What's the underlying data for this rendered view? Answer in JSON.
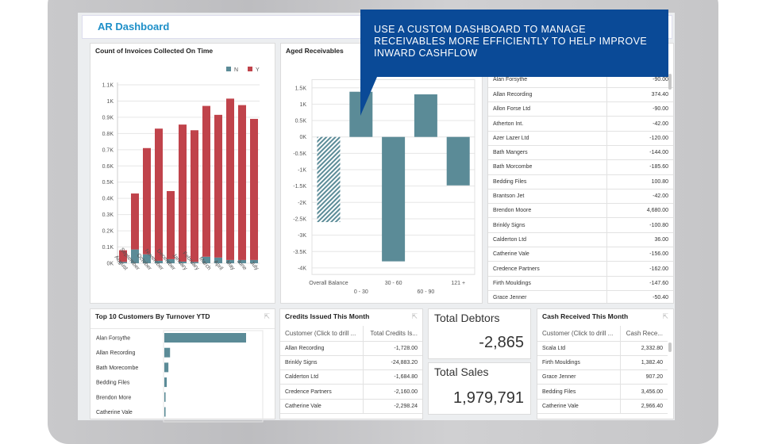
{
  "callout": {
    "lines": [
      "USE A CUSTOM DASHBOARD TO MANAGE",
      "RECEIVABLES MORE EFFICIENTLY TO HELP IMPROVE",
      "INWARD CASHFLOW"
    ],
    "color": "#0a4a97"
  },
  "dashboard": {
    "title": "AR Dashboard"
  },
  "colors": {
    "N": "#5b8b97",
    "Y": "#c0434b",
    "bar": "#5b8b97"
  },
  "chart_data": [
    {
      "type": "bar",
      "stacked": true,
      "title": "Count of Invoices Collected On Time",
      "legend": "top-right",
      "categories": [
        "August",
        "September",
        "October",
        "November",
        "December",
        "January",
        "February",
        "March",
        "April",
        "May",
        "June",
        "July"
      ],
      "series": [
        {
          "name": "N",
          "values": [
            8,
            85,
            55,
            15,
            25,
            10,
            8,
            40,
            35,
            20,
            20,
            20
          ]
        },
        {
          "name": "Y",
          "values": [
            72,
            345,
            655,
            815,
            420,
            845,
            812,
            930,
            880,
            995,
            955,
            870
          ]
        }
      ],
      "yticks": [
        "0K",
        "0.1K",
        "0.2K",
        "0.3K",
        "0.4K",
        "0.5K",
        "0.6K",
        "0.7K",
        "0.8K",
        "0.9K",
        "1K",
        "1.1K"
      ],
      "ylim": [
        0,
        1100
      ],
      "grid": true
    },
    {
      "type": "bar",
      "title": "Aged Receivables",
      "categories": [
        "Overall Balance",
        "0 - 30",
        "30 - 60",
        "60 - 90",
        "121 +"
      ],
      "values": [
        -2600,
        1380,
        -3800,
        1300,
        -1480
      ],
      "yticks": [
        "1.5K",
        "1K",
        "0.5K",
        "0K",
        "-0.5K",
        "-1K",
        "-1.5K",
        "-2K",
        "-2.5K",
        "-3K",
        "-3.5K",
        "-4K"
      ],
      "ylim": [
        -4200,
        1750
      ],
      "grid": true
    },
    {
      "type": "bar",
      "orientation": "horizontal",
      "title": "Top 10 Customers By Turnover YTD",
      "categories": [
        "Alan Forsythe",
        "Allan Recording",
        "Bath Morecombe",
        "Bedding Files",
        "Brendon More",
        "Catherine Vale"
      ],
      "values": [
        1,
        0.07,
        0.05,
        0.03,
        0.015,
        0.015
      ]
    }
  ],
  "balances": {
    "rows": [
      [
        "Alan Forsythe",
        "-90.00"
      ],
      [
        "Allan Recording",
        "374.40"
      ],
      [
        "Allon Forse Ltd",
        "-90.00"
      ],
      [
        "Atherton Int.",
        "-42.00"
      ],
      [
        "Azer Lazer Ltd",
        "-120.00"
      ],
      [
        "Bath Mangers",
        "-144.00"
      ],
      [
        "Bath Morcombe",
        "-185.60"
      ],
      [
        "Bedding Files",
        "100.80"
      ],
      [
        "Brantson Jet",
        "-42.00"
      ],
      [
        "Brendon Moore",
        "4,680.00"
      ],
      [
        "Brinkly Signs",
        "-100.80"
      ],
      [
        "Calderton Ltd",
        "36.00"
      ],
      [
        "Catherine Vale",
        "-156.00"
      ],
      [
        "Credence Partners",
        "-162.00"
      ],
      [
        "Firth Mouldings",
        "-147.60"
      ],
      [
        "Grace Jenner",
        "-50.40"
      ]
    ]
  },
  "credits": {
    "title": "Credits Issued This Month",
    "cols": [
      "Customer (Click to drill ...",
      "Total Credits Is..."
    ],
    "rows": [
      [
        "Allan Recording",
        "-1,728.00"
      ],
      [
        "Brinkly Signs",
        "-24,883.20"
      ],
      [
        "Calderton Ltd",
        "-1,684.80"
      ],
      [
        "Credence Partners",
        "-2,160.00"
      ],
      [
        "Catherine Vale",
        "-2,298.24"
      ]
    ]
  },
  "debtors": {
    "label": "Total Debtors",
    "value": "-2,865"
  },
  "sales": {
    "label": "Total Sales",
    "value": "1,979,791"
  },
  "cash": {
    "title": "Cash Received This Month",
    "cols": [
      "Customer (Click to drill ...",
      "Cash Rece..."
    ],
    "rows": [
      [
        "Scala Ltd",
        "2,332.80"
      ],
      [
        "Firth Mouldings",
        "1,382.40"
      ],
      [
        "Grace Jenner",
        "907.20"
      ],
      [
        "Bedding Files",
        "3,456.00"
      ],
      [
        "Catherine Vale",
        "2,966.40"
      ]
    ]
  }
}
